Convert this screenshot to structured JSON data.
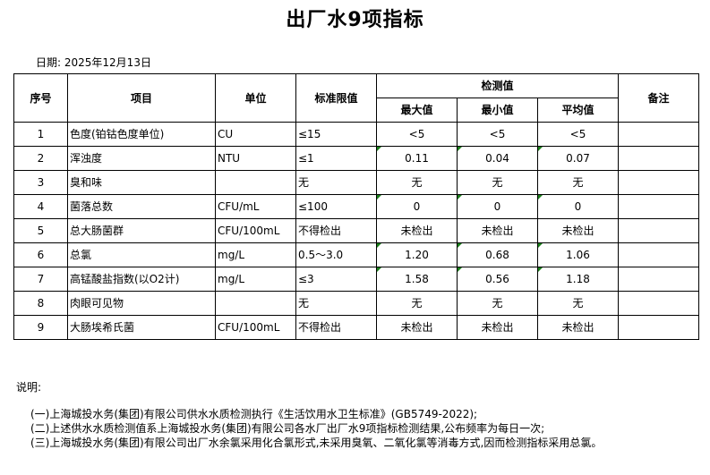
{
  "title": "出厂水9项指标",
  "date_label": "日期:",
  "date": "2025年12月13日",
  "headers": {
    "no": "序号",
    "item": "项目",
    "unit": "单位",
    "limit": "标准限值",
    "detect": "检测值",
    "max": "最大值",
    "min": "最小值",
    "avg": "平均值",
    "remark": "备注"
  },
  "rows": [
    {
      "no": "1",
      "item": "色度(铂钴色度单位)",
      "unit": "CU",
      "limit": "≤15",
      "max": "<5",
      "min": "<5",
      "avg": "<5",
      "remark": "",
      "flag": false
    },
    {
      "no": "2",
      "item": "浑浊度",
      "unit": "NTU",
      "limit": "≤1",
      "max": "0.11",
      "min": "0.04",
      "avg": "0.07",
      "remark": "",
      "flag": true
    },
    {
      "no": "3",
      "item": "臭和味",
      "unit": "",
      "limit": "无",
      "max": "无",
      "min": "无",
      "avg": "无",
      "remark": "",
      "flag": false
    },
    {
      "no": "4",
      "item": "菌落总数",
      "unit": "CFU/mL",
      "limit": "≤100",
      "max": "0",
      "min": "0",
      "avg": "0",
      "remark": "",
      "flag": true
    },
    {
      "no": "5",
      "item": "总大肠菌群",
      "unit": "CFU/100mL",
      "limit": "不得检出",
      "max": "未检出",
      "min": "未检出",
      "avg": "未检出",
      "remark": "",
      "flag": false
    },
    {
      "no": "6",
      "item": "总氯",
      "unit": "mg/L",
      "limit": "0.5～3.0",
      "max": "1.20",
      "min": "0.68",
      "avg": "1.06",
      "remark": "",
      "flag": true
    },
    {
      "no": "7",
      "item": "高锰酸盐指数(以O2计)",
      "unit": "mg/L",
      "limit": "≤3",
      "max": "1.58",
      "min": "0.56",
      "avg": "1.18",
      "remark": "",
      "flag": true
    },
    {
      "no": "8",
      "item": "肉眼可见物",
      "unit": "",
      "limit": "无",
      "max": "无",
      "min": "无",
      "avg": "无",
      "remark": "",
      "flag": false
    },
    {
      "no": "9",
      "item": "大肠埃希氏菌",
      "unit": "CFU/100mL",
      "limit": "不得检出",
      "max": "未检出",
      "min": "未检出",
      "avg": "未检出",
      "remark": "",
      "flag": false
    }
  ],
  "notes": {
    "heading": "说明:",
    "lines": [
      "(一)上海城投水务(集团)有限公司供水水质检测执行《生活饮用水卫生标准》(GB5749-2022);",
      "(二)上述供水水质检测值系上海城投水务(集团)有限公司各水厂出厂水9项指标检测结果,公布频率为每日一次;",
      "(三)上海城投水务(集团)有限公司出厂水余氯采用化合氯形式,未采用臭氧、二氧化氯等消毒方式,因而检测指标采用总氯。"
    ]
  },
  "colors": {
    "flag": "#1a7f1a"
  }
}
